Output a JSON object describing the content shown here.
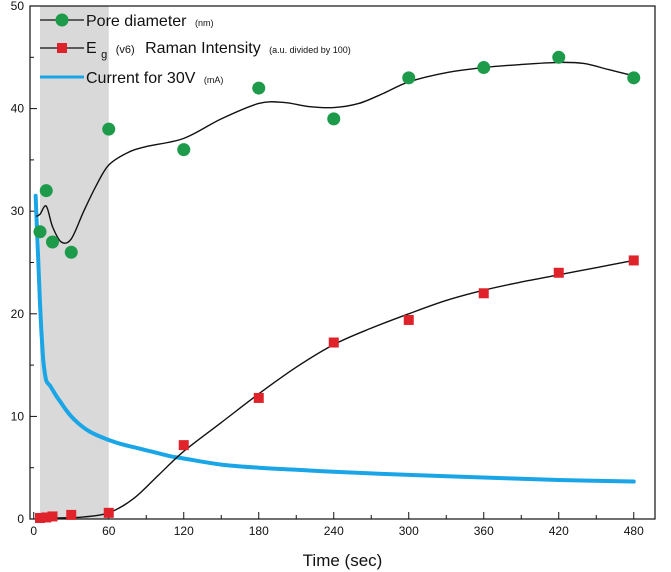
{
  "chart_data": {
    "type": "line",
    "title": "",
    "xlabel": "Time (sec)",
    "ylabel": "",
    "xlim": [
      -3,
      497
    ],
    "ylim": [
      0,
      50
    ],
    "xticks": [
      0,
      60,
      120,
      180,
      240,
      300,
      360,
      420,
      480
    ],
    "yticks": [
      0,
      10,
      20,
      30,
      40,
      50
    ],
    "grid": false,
    "legend_position": "top-left",
    "shaded_region": {
      "x_start": 5,
      "x_end": 60,
      "color": "#d9d9d9"
    },
    "series": [
      {
        "name": "Pore diameter",
        "name_unit": "(nm)",
        "marker": "circle",
        "color": "#1e9b4a",
        "line_color": "#111111",
        "x": [
          5,
          10,
          15,
          30,
          60,
          120,
          180,
          240,
          300,
          360,
          420,
          480
        ],
        "y": [
          28,
          32,
          27,
          26,
          38,
          36,
          42,
          39,
          43,
          44,
          45,
          43
        ],
        "fit_x": [
          2,
          5,
          10,
          15,
          22,
          30,
          40,
          50,
          60,
          75,
          90,
          120,
          150,
          180,
          200,
          220,
          240,
          260,
          280,
          300,
          330,
          360,
          390,
          420,
          440,
          460,
          480
        ],
        "fit_y": [
          29.5,
          29.7,
          30.5,
          28.5,
          27,
          27.3,
          30,
          32.5,
          34.5,
          35.7,
          36.3,
          37.1,
          39.0,
          40.5,
          40.6,
          40.2,
          40.1,
          40.5,
          41.5,
          42.6,
          43.5,
          44.0,
          44.3,
          44.5,
          44.4,
          43.8,
          43.2
        ]
      },
      {
        "name": "E",
        "name_sub": "g",
        "name_mode": "(v6)",
        "name_rest": "Raman Intensity",
        "name_unit": "(a.u. divided by 100)",
        "marker": "square",
        "color": "#e0222a",
        "line_color": "#111111",
        "x": [
          5,
          10,
          15,
          30,
          60,
          120,
          180,
          240,
          300,
          360,
          420,
          480
        ],
        "y": [
          0.1,
          0.15,
          0.25,
          0.4,
          0.6,
          7.2,
          11.8,
          17.2,
          19.4,
          22,
          24,
          25.2
        ],
        "fit_x": [
          5,
          20,
          40,
          60,
          80,
          100,
          120,
          150,
          180,
          210,
          240,
          270,
          300,
          330,
          360,
          390,
          420,
          450,
          480
        ],
        "fit_y": [
          0.1,
          0.1,
          0.2,
          0.6,
          2.0,
          4.3,
          6.6,
          9.4,
          12.2,
          14.8,
          17.0,
          18.6,
          20.0,
          21.3,
          22.3,
          23.1,
          23.8,
          24.5,
          25.2
        ]
      },
      {
        "name": "Current for 30V",
        "name_unit": "(mA)",
        "marker": "none",
        "color": "#1aa6e6",
        "x": [
          1.5,
          2,
          3,
          4,
          5,
          6,
          7,
          8,
          10,
          13,
          15,
          18,
          22,
          26,
          30,
          35,
          40,
          45,
          50,
          60,
          70,
          80,
          90,
          100,
          110,
          120,
          150,
          180,
          210,
          240,
          300,
          360,
          420,
          480
        ],
        "y": [
          31.5,
          30,
          27,
          24,
          21,
          18.5,
          16.5,
          15,
          13.5,
          13,
          12.6,
          12,
          11.3,
          10.6,
          10,
          9.4,
          8.9,
          8.5,
          8.2,
          7.7,
          7.3,
          7.0,
          6.7,
          6.4,
          6.1,
          5.9,
          5.3,
          5.0,
          4.8,
          4.6,
          4.3,
          4.05,
          3.8,
          3.65
        ]
      }
    ]
  }
}
